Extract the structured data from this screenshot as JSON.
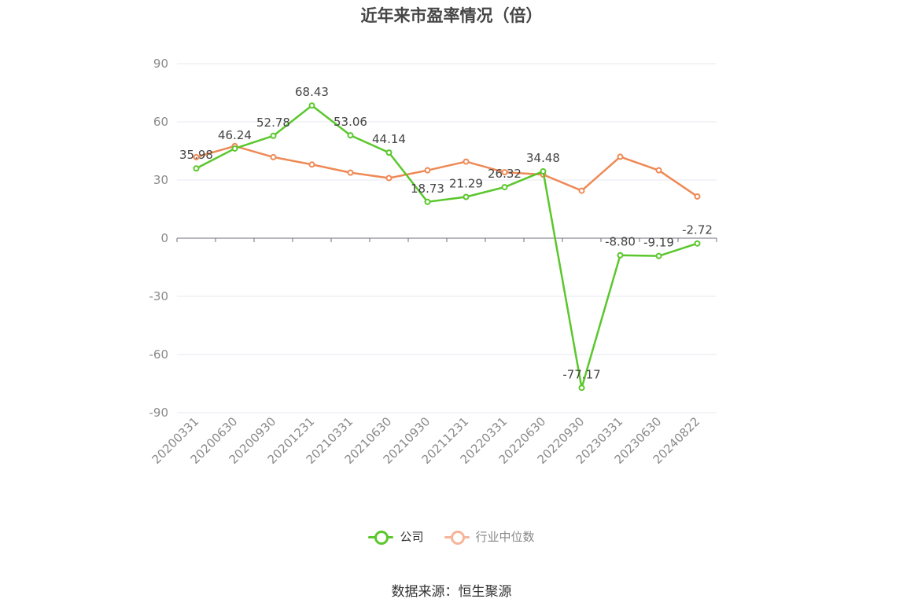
{
  "chart_data": {
    "type": "line",
    "title": "近年来市盈率情况（倍）",
    "categories": [
      "20200331",
      "20200630",
      "20200930",
      "20201231",
      "20210331",
      "20210630",
      "20210930",
      "20211231",
      "20220331",
      "20220630",
      "20220930",
      "20230331",
      "20230630",
      "20240822"
    ],
    "series": [
      {
        "name": "公司",
        "color": "#5ac72c",
        "values": [
          35.98,
          46.24,
          52.78,
          68.43,
          53.06,
          44.14,
          18.73,
          21.29,
          26.32,
          34.48,
          -77.17,
          -8.8,
          -9.19,
          -2.72
        ],
        "labels": [
          "35.98",
          "46.24",
          "52.78",
          "68.43",
          "53.06",
          "44.14",
          "18.73",
          "21.29",
          "26.32",
          "34.48",
          "-77.17",
          "-8.80",
          "-9.19",
          "-2.72"
        ]
      },
      {
        "name": "行业中位数",
        "color": "#ee8955",
        "values": [
          41.8,
          47.5,
          41.8,
          38.0,
          33.8,
          31.0,
          35.0,
          39.5,
          34.0,
          32.8,
          24.5,
          42.0,
          35.0,
          21.5
        ]
      }
    ],
    "yticks": [
      90,
      60,
      30,
      0,
      -30,
      -60,
      -90
    ],
    "ylim": [
      -90,
      90
    ],
    "grid": true,
    "legend_position": "bottom"
  },
  "legend": [
    {
      "label": "公司",
      "color": "#5ac72c",
      "active": true
    },
    {
      "label": "行业中位数",
      "color": "#f5b59a",
      "active": false
    }
  ],
  "source": "数据来源：恒生聚源"
}
